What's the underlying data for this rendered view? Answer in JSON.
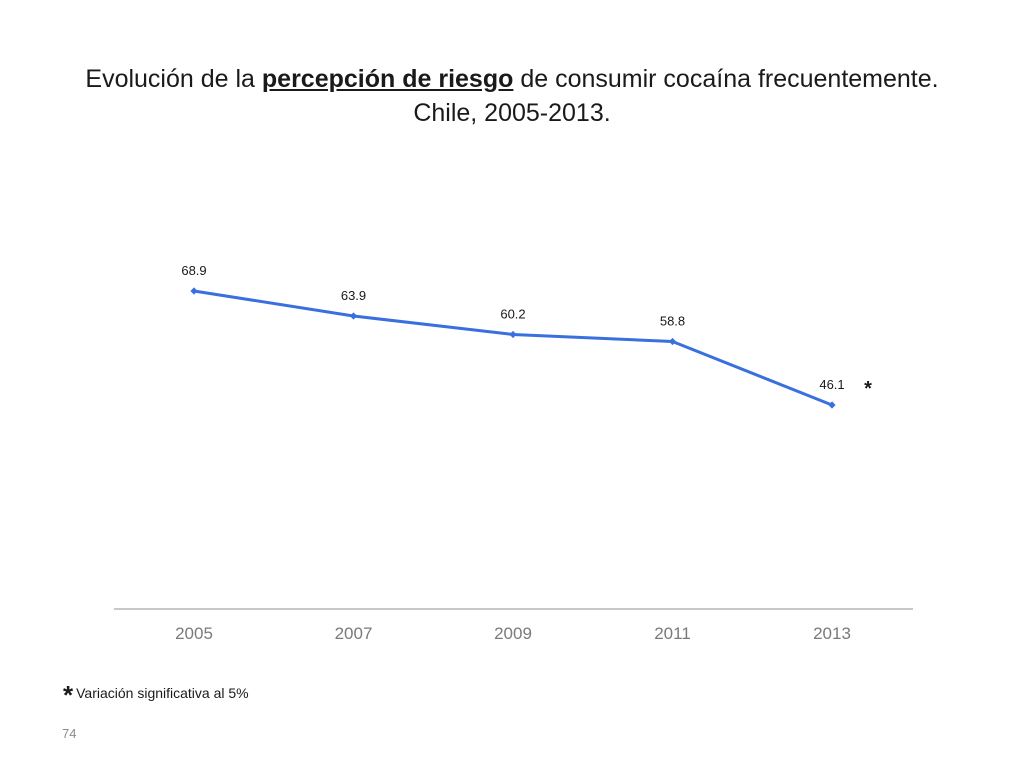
{
  "title": {
    "line1_pre": "Evolución de la ",
    "line1_emph": "percepción de riesgo",
    "line1_post": " de consumir cocaína frecuentemente.",
    "line2": "Chile, 2005-2013."
  },
  "chart_data": {
    "type": "line",
    "categories": [
      "2005",
      "2007",
      "2009",
      "2011",
      "2013"
    ],
    "series": [
      {
        "values": [
          68.9,
          63.9,
          60.2,
          58.8,
          46.1
        ],
        "data_labels": [
          "68.9",
          "63.9",
          "60.2",
          "58.8",
          "46.1"
        ],
        "color": "#3a6fe0"
      }
    ],
    "annotation": {
      "text": "*",
      "category": "2013"
    },
    "grid": false,
    "legend": "none",
    "y_axis_visible": false
  },
  "footnote": {
    "symbol": "*",
    "text": "Variación significativa al 5%"
  },
  "page_number": "74"
}
